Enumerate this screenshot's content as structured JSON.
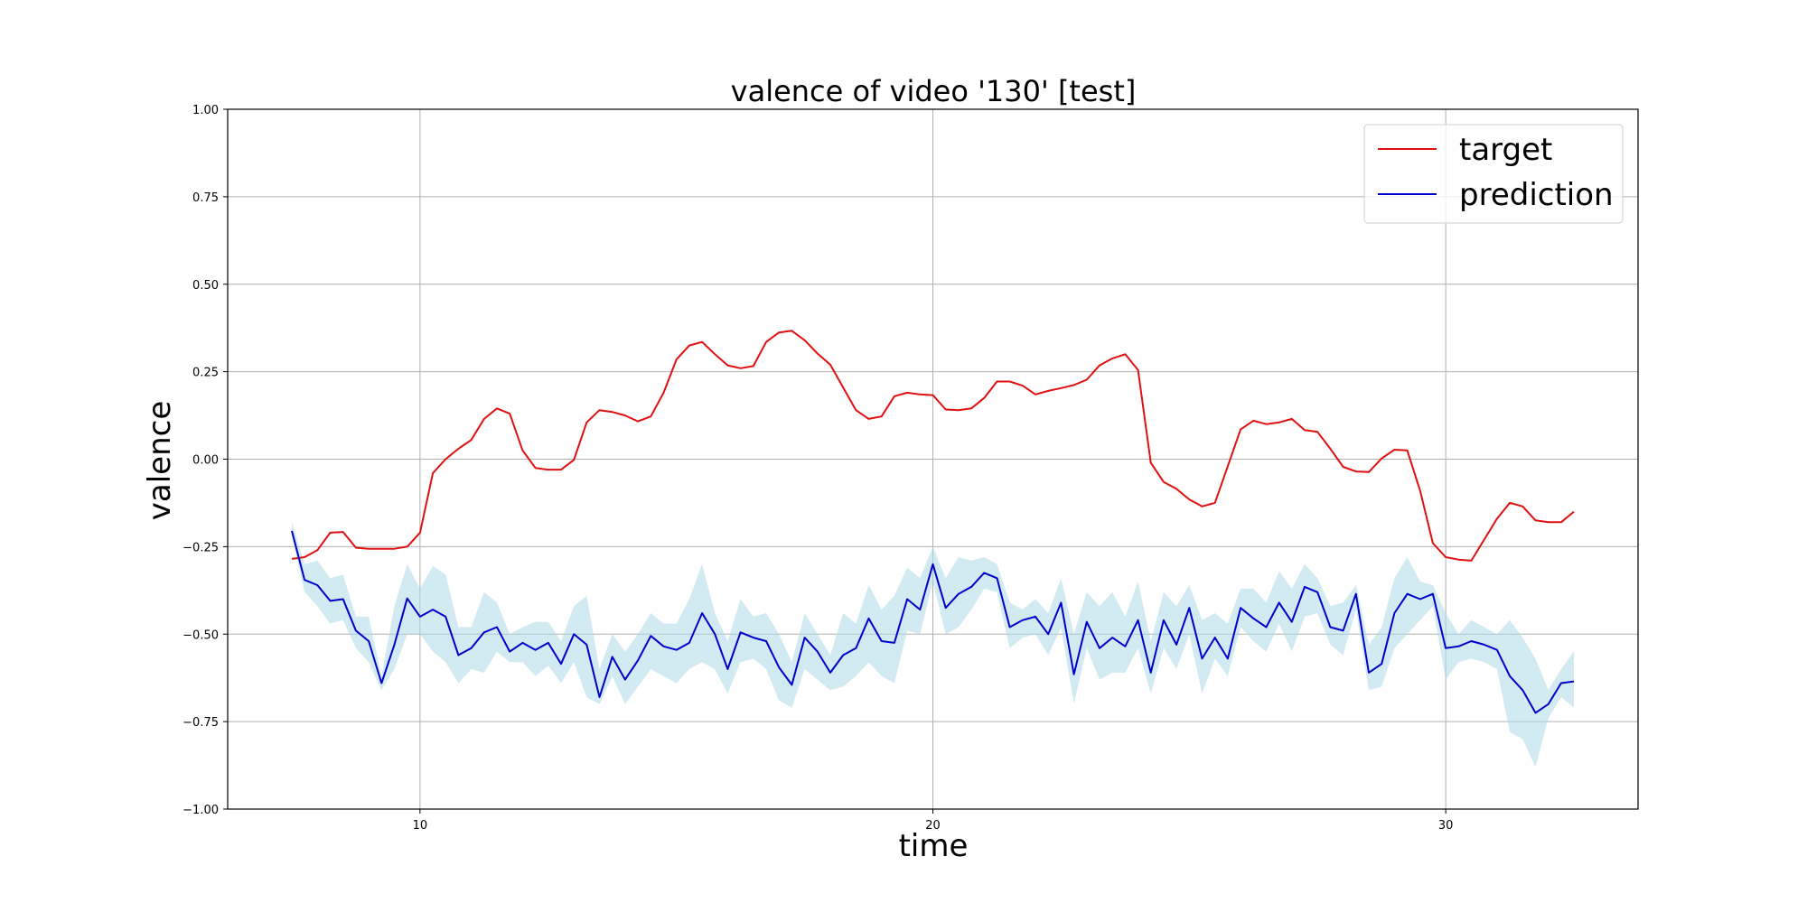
{
  "chart_data": {
    "type": "line",
    "title": "valence of video '130' [test]",
    "xlabel": "time",
    "ylabel": "valence",
    "xlim": [
      6.25,
      33.75
    ],
    "ylim": [
      -1.0,
      1.0
    ],
    "x_ticks": [
      10,
      20,
      30
    ],
    "y_ticks": [
      1.0,
      0.75,
      0.5,
      0.25,
      0.0,
      -0.25,
      -0.5,
      -0.75,
      -1.0
    ],
    "y_tick_labels": [
      "1.00",
      "0.75",
      "0.50",
      "0.25",
      "0.00",
      "−0.25",
      "−0.50",
      "−0.75",
      "−1.00"
    ],
    "grid": true,
    "legend_position": "top-right",
    "x": [
      7.5,
      7.75,
      8.0,
      8.25,
      8.5,
      8.75,
      9.0,
      9.25,
      9.5,
      9.75,
      10.0,
      10.25,
      10.5,
      10.75,
      11.0,
      11.25,
      11.5,
      11.75,
      12.0,
      12.25,
      12.5,
      12.75,
      13.0,
      13.25,
      13.5,
      13.75,
      14.0,
      14.25,
      14.5,
      14.75,
      15.0,
      15.25,
      15.5,
      15.75,
      16.0,
      16.25,
      16.5,
      16.75,
      17.0,
      17.25,
      17.5,
      17.75,
      18.0,
      18.25,
      18.5,
      18.75,
      19.0,
      19.25,
      19.5,
      19.75,
      20.0,
      20.25,
      20.5,
      20.75,
      21.0,
      21.25,
      21.5,
      21.75,
      22.0,
      22.25,
      22.5,
      22.75,
      23.0,
      23.25,
      23.5,
      23.75,
      24.0,
      24.25,
      24.5,
      24.75,
      25.0,
      25.25,
      25.5,
      25.75,
      26.0,
      26.25,
      26.5,
      26.75,
      27.0,
      27.25,
      27.5,
      27.75,
      28.0,
      28.25,
      28.5,
      28.75,
      29.0,
      29.25,
      29.5,
      29.75,
      30.0,
      30.25,
      30.5,
      30.75,
      31.0,
      31.25,
      31.5,
      31.75,
      32.0,
      32.25,
      32.5
    ],
    "series": [
      {
        "name": "target",
        "color": "#e01010",
        "values": [
          -0.285,
          -0.28,
          -0.26,
          -0.21,
          -0.208,
          -0.253,
          -0.256,
          -0.256,
          -0.256,
          -0.25,
          -0.21,
          -0.04,
          0.0,
          0.03,
          0.055,
          0.115,
          0.145,
          0.13,
          0.025,
          -0.025,
          -0.03,
          -0.03,
          -0.002,
          0.105,
          0.14,
          0.135,
          0.125,
          0.108,
          0.122,
          0.19,
          0.285,
          0.325,
          0.335,
          0.3,
          0.268,
          0.26,
          0.266,
          0.335,
          0.362,
          0.367,
          0.34,
          0.302,
          0.27,
          0.205,
          0.14,
          0.115,
          0.122,
          0.18,
          0.19,
          0.185,
          0.183,
          0.142,
          0.14,
          0.145,
          0.175,
          0.222,
          0.222,
          0.21,
          0.185,
          0.195,
          0.203,
          0.212,
          0.227,
          0.268,
          0.288,
          0.3,
          0.255,
          -0.01,
          -0.065,
          -0.085,
          -0.115,
          -0.135,
          -0.125,
          -0.02,
          0.085,
          0.11,
          0.1,
          0.105,
          0.115,
          0.083,
          0.078,
          0.03,
          -0.022,
          -0.035,
          -0.037,
          0.002,
          0.027,
          0.025,
          -0.09,
          -0.24,
          -0.28,
          -0.287,
          -0.29,
          -0.23,
          -0.17,
          -0.125,
          -0.135,
          -0.175,
          -0.18,
          -0.18,
          -0.15
        ]
      },
      {
        "name": "prediction",
        "color": "#0000cc",
        "band_color": "#add8e6",
        "values": [
          -0.205,
          -0.345,
          -0.36,
          -0.405,
          -0.4,
          -0.49,
          -0.52,
          -0.64,
          -0.53,
          -0.398,
          -0.45,
          -0.43,
          -0.45,
          -0.56,
          -0.54,
          -0.495,
          -0.48,
          -0.55,
          -0.525,
          -0.545,
          -0.525,
          -0.585,
          -0.5,
          -0.53,
          -0.68,
          -0.565,
          -0.63,
          -0.575,
          -0.505,
          -0.535,
          -0.545,
          -0.525,
          -0.44,
          -0.5,
          -0.6,
          -0.495,
          -0.51,
          -0.52,
          -0.595,
          -0.645,
          -0.51,
          -0.55,
          -0.61,
          -0.56,
          -0.54,
          -0.455,
          -0.52,
          -0.525,
          -0.4,
          -0.43,
          -0.3,
          -0.425,
          -0.385,
          -0.365,
          -0.325,
          -0.34,
          -0.48,
          -0.46,
          -0.45,
          -0.5,
          -0.41,
          -0.615,
          -0.465,
          -0.54,
          -0.51,
          -0.535,
          -0.46,
          -0.61,
          -0.46,
          -0.53,
          -0.425,
          -0.57,
          -0.51,
          -0.57,
          -0.425,
          -0.455,
          -0.48,
          -0.41,
          -0.465,
          -0.365,
          -0.38,
          -0.48,
          -0.49,
          -0.385,
          -0.61,
          -0.585,
          -0.44,
          -0.385,
          -0.4,
          -0.385,
          -0.54,
          -0.535,
          -0.52,
          -0.53,
          -0.545,
          -0.62,
          -0.66,
          -0.725,
          -0.7,
          -0.64,
          -0.635
        ],
        "upper": [
          -0.18,
          -0.3,
          -0.29,
          -0.34,
          -0.33,
          -0.45,
          -0.45,
          -0.62,
          -0.42,
          -0.3,
          -0.37,
          -0.305,
          -0.33,
          -0.48,
          -0.48,
          -0.38,
          -0.41,
          -0.5,
          -0.48,
          -0.465,
          -0.465,
          -0.52,
          -0.42,
          -0.39,
          -0.6,
          -0.5,
          -0.55,
          -0.5,
          -0.44,
          -0.47,
          -0.47,
          -0.4,
          -0.3,
          -0.44,
          -0.52,
          -0.4,
          -0.45,
          -0.44,
          -0.5,
          -0.58,
          -0.44,
          -0.5,
          -0.56,
          -0.44,
          -0.47,
          -0.36,
          -0.43,
          -0.39,
          -0.31,
          -0.34,
          -0.25,
          -0.34,
          -0.28,
          -0.29,
          -0.28,
          -0.3,
          -0.41,
          -0.43,
          -0.4,
          -0.44,
          -0.34,
          -0.5,
          -0.38,
          -0.42,
          -0.38,
          -0.45,
          -0.35,
          -0.52,
          -0.38,
          -0.42,
          -0.36,
          -0.46,
          -0.44,
          -0.47,
          -0.37,
          -0.37,
          -0.41,
          -0.32,
          -0.37,
          -0.3,
          -0.34,
          -0.42,
          -0.41,
          -0.36,
          -0.53,
          -0.48,
          -0.34,
          -0.28,
          -0.35,
          -0.36,
          -0.44,
          -0.5,
          -0.46,
          -0.48,
          -0.5,
          -0.46,
          -0.51,
          -0.57,
          -0.66,
          -0.6,
          -0.55
        ],
        "lower": [
          -0.22,
          -0.38,
          -0.42,
          -0.47,
          -0.46,
          -0.54,
          -0.58,
          -0.66,
          -0.6,
          -0.5,
          -0.5,
          -0.55,
          -0.58,
          -0.64,
          -0.6,
          -0.61,
          -0.55,
          -0.58,
          -0.58,
          -0.62,
          -0.59,
          -0.64,
          -0.58,
          -0.68,
          -0.7,
          -0.62,
          -0.7,
          -0.65,
          -0.6,
          -0.62,
          -0.64,
          -0.6,
          -0.58,
          -0.6,
          -0.67,
          -0.58,
          -0.57,
          -0.6,
          -0.69,
          -0.71,
          -0.6,
          -0.63,
          -0.66,
          -0.65,
          -0.62,
          -0.58,
          -0.62,
          -0.64,
          -0.49,
          -0.5,
          -0.35,
          -0.5,
          -0.48,
          -0.43,
          -0.37,
          -0.38,
          -0.54,
          -0.51,
          -0.5,
          -0.56,
          -0.48,
          -0.7,
          -0.54,
          -0.63,
          -0.61,
          -0.61,
          -0.54,
          -0.67,
          -0.54,
          -0.6,
          -0.5,
          -0.67,
          -0.57,
          -0.62,
          -0.48,
          -0.52,
          -0.55,
          -0.47,
          -0.55,
          -0.45,
          -0.44,
          -0.53,
          -0.56,
          -0.43,
          -0.66,
          -0.65,
          -0.54,
          -0.5,
          -0.46,
          -0.42,
          -0.63,
          -0.58,
          -0.57,
          -0.58,
          -0.6,
          -0.78,
          -0.8,
          -0.88,
          -0.74,
          -0.68,
          -0.71
        ]
      }
    ]
  }
}
